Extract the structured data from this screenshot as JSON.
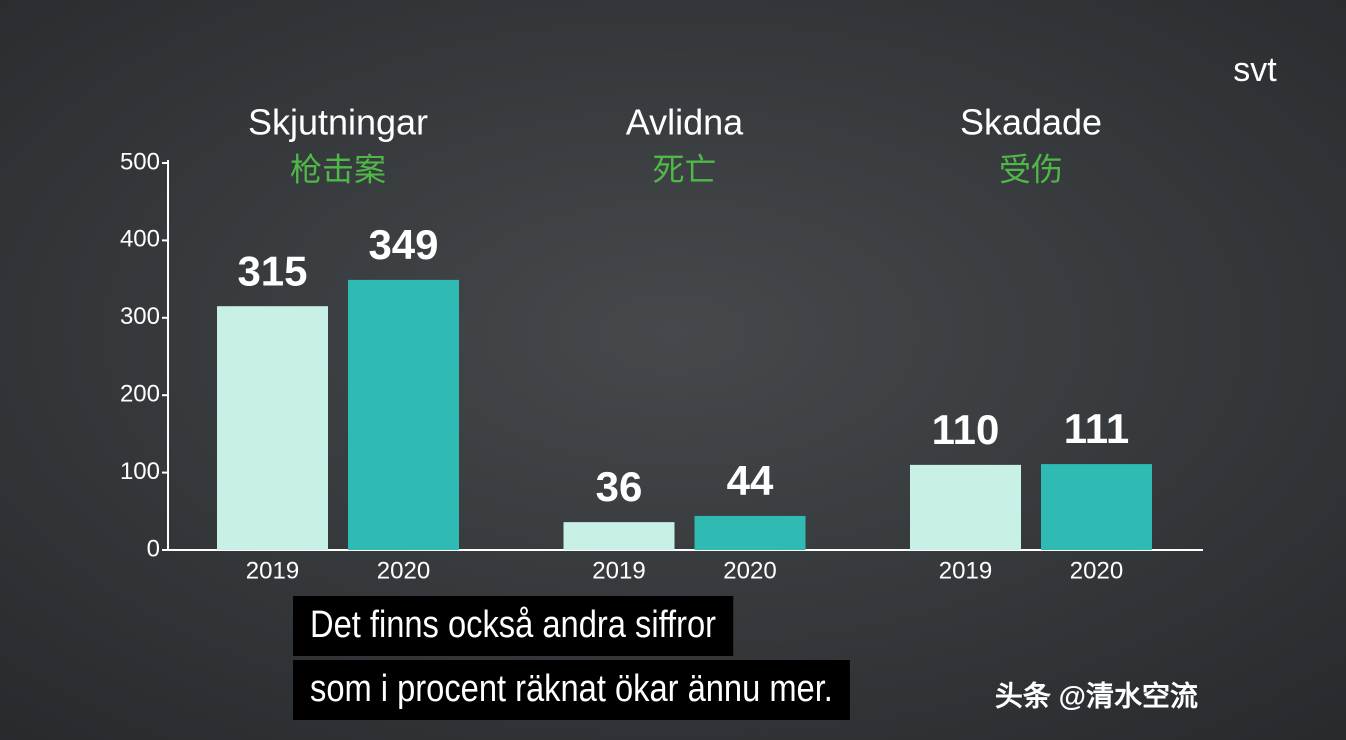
{
  "chart_data": {
    "type": "bar",
    "logo": "svt",
    "categories": [
      "Skjutningar",
      "Avlidna",
      "Skadade"
    ],
    "category_subtitles": [
      "枪击案",
      "死亡",
      "受伤"
    ],
    "series": [
      {
        "name": "2019",
        "color": "#c9f0e6",
        "values": [
          315,
          36,
          110
        ]
      },
      {
        "name": "2020",
        "color": "#2fbab3",
        "values": [
          349,
          44,
          111
        ]
      }
    ],
    "ylim": [
      0,
      500
    ],
    "yticks": [
      0,
      100,
      200,
      300,
      400,
      500
    ],
    "captions": [
      "Det finns också andra siffror",
      "som i procent räknat ökar ännu mer."
    ],
    "watermark": "头条 @清水空流"
  }
}
